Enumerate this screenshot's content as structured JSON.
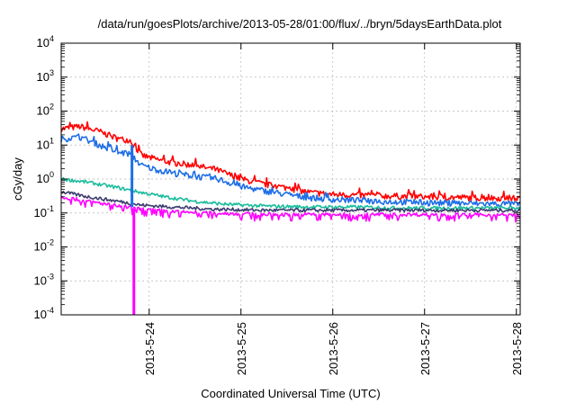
{
  "chart_data": {
    "type": "line",
    "title": "/data/run/goesPlots/archive/2013-05-28/01:00/flux/../bryn/5daysEarthData.plot",
    "xlabel": "Coordinated Universal Time (UTC)",
    "ylabel": "cGy/day",
    "yscale": "log",
    "ylim": [
      0.0001,
      10000
    ],
    "y_ticks": [
      {
        "value": 0.0001,
        "base": "10",
        "exp": "-4"
      },
      {
        "value": 0.001,
        "base": "10",
        "exp": "-3"
      },
      {
        "value": 0.01,
        "base": "10",
        "exp": "-2"
      },
      {
        "value": 0.1,
        "base": "10",
        "exp": "-1"
      },
      {
        "value": 1,
        "base": "10",
        "exp": "0"
      },
      {
        "value": 10,
        "base": "10",
        "exp": "1"
      },
      {
        "value": 100,
        "base": "10",
        "exp": "2"
      },
      {
        "value": 1000,
        "base": "10",
        "exp": "3"
      },
      {
        "value": 10000,
        "base": "10",
        "exp": "4"
      }
    ],
    "xlim": [
      "2013-05-23 01:00",
      "2013-05-28 01:00"
    ],
    "x_ticks": [
      "2013-5-24",
      "2013-5-25",
      "2013-5-26",
      "2013-5-27",
      "2013-5-28"
    ],
    "grid": true,
    "legend": "none",
    "series": [
      {
        "color": "#ff0000",
        "x": [
          "2013-05-23 01:00",
          "2013-05-23 06:00",
          "2013-05-23 11:00",
          "2013-05-23 16:00",
          "2013-05-23 19:00",
          "2013-05-23 22:00",
          "2013-05-24 01:00",
          "2013-05-24 06:00",
          "2013-05-24 12:00",
          "2013-05-24 18:00",
          "2013-05-25 00:00",
          "2013-05-25 06:00",
          "2013-05-25 12:00",
          "2013-05-25 18:00",
          "2013-05-26 00:00",
          "2013-05-26 12:00",
          "2013-05-27 00:00",
          "2013-05-27 12:00",
          "2013-05-28 01:00"
        ],
        "values": [
          30,
          35,
          25,
          15,
          14,
          5,
          4,
          3,
          2.5,
          1.8,
          1.0,
          0.7,
          0.55,
          0.4,
          0.35,
          0.32,
          0.3,
          0.28,
          0.27
        ]
      },
      {
        "color": "#1e6ee6",
        "x": [
          "2013-05-23 01:00",
          "2013-05-23 06:00",
          "2013-05-23 11:00",
          "2013-05-23 16:00",
          "2013-05-23 19:00",
          "2013-05-23 22:00",
          "2013-05-24 01:00",
          "2013-05-24 06:00",
          "2013-05-24 12:00",
          "2013-05-24 18:00",
          "2013-05-25 00:00",
          "2013-05-25 06:00",
          "2013-05-25 12:00",
          "2013-05-25 18:00",
          "2013-05-26 00:00",
          "2013-05-26 12:00",
          "2013-05-27 00:00",
          "2013-05-27 12:00",
          "2013-05-28 01:00"
        ],
        "values": [
          15,
          17,
          10,
          6,
          5.5,
          2.5,
          2,
          1.5,
          1.2,
          1.0,
          0.6,
          0.45,
          0.35,
          0.28,
          0.25,
          0.22,
          0.2,
          0.19,
          0.18
        ]
      },
      {
        "color": "#1abc9c",
        "x": [
          "2013-05-23 01:00",
          "2013-05-23 08:00",
          "2013-05-23 16:00",
          "2013-05-23 22:00",
          "2013-05-24 04:00",
          "2013-05-24 12:00",
          "2013-05-24 20:00",
          "2013-05-25 06:00",
          "2013-05-25 18:00",
          "2013-05-26 06:00",
          "2013-05-26 18:00",
          "2013-05-27 12:00",
          "2013-05-28 01:00"
        ],
        "values": [
          1.0,
          0.8,
          0.55,
          0.4,
          0.3,
          0.22,
          0.18,
          0.16,
          0.15,
          0.15,
          0.14,
          0.14,
          0.14
        ]
      },
      {
        "color": "#3c3c6e",
        "x": [
          "2013-05-23 01:00",
          "2013-05-23 08:00",
          "2013-05-23 16:00",
          "2013-05-23 22:00",
          "2013-05-24 06:00",
          "2013-05-24 16:00",
          "2013-05-25 06:00",
          "2013-05-25 18:00",
          "2013-05-26 12:00",
          "2013-05-27 06:00",
          "2013-05-28 01:00"
        ],
        "values": [
          0.42,
          0.3,
          0.22,
          0.17,
          0.15,
          0.13,
          0.12,
          0.12,
          0.12,
          0.12,
          0.12
        ]
      },
      {
        "color": "#ff00ff",
        "x": [
          "2013-05-23 01:00",
          "2013-05-23 08:00",
          "2013-05-23 16:00",
          "2013-05-23 22:00",
          "2013-05-24 06:00",
          "2013-05-24 16:00",
          "2013-05-25 06:00",
          "2013-05-25 18:00",
          "2013-05-26 12:00",
          "2013-05-27 06:00",
          "2013-05-28 01:00"
        ],
        "values": [
          0.3,
          0.22,
          0.16,
          0.13,
          0.11,
          0.1,
          0.09,
          0.09,
          0.09,
          0.09,
          0.085
        ]
      }
    ],
    "dropouts": [
      {
        "x": "2013-05-23 19:30",
        "color": "#1e6ee6",
        "from": 10,
        "to": 0.15
      },
      {
        "x": "2013-05-23 20:00",
        "color": "#ff00ff",
        "from": 0.13,
        "to": 0.0001
      }
    ]
  }
}
